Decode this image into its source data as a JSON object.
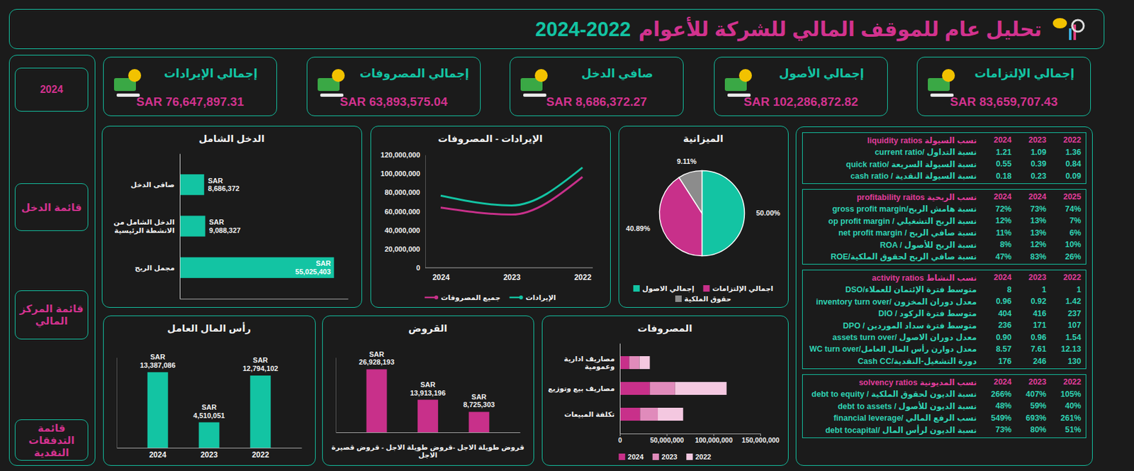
{
  "header": {
    "title": "تحليل عام للموقف المالي للشركة للأعوام",
    "years": "2022-2024"
  },
  "sidebar": [
    "2024",
    "قائمة الدخل",
    "قائمة المركز المالي",
    "قائمة التدفقات النقدية"
  ],
  "kpis": [
    {
      "label": "إجمالي الإيرادات",
      "value": "SAR 76,647,897.31"
    },
    {
      "label": "إجمالي المصروفات",
      "value": "SAR 63,893,575.04"
    },
    {
      "label": "صافي الدخل",
      "value": "SAR 8,686,372.27"
    },
    {
      "label": "إجمالي الأصول",
      "value": "SAR 102,286,872.82"
    },
    {
      "label": "إجمالي الإلتزامات",
      "value": "SAR 83,659,707.43"
    }
  ],
  "chart_data": [
    {
      "type": "bar",
      "title": "الدخل الشامل",
      "orientation": "horizontal",
      "categories": [
        "صافى الدخل",
        "الدخل الشامل من الانشطة الرئيسية",
        "مجمل الربح"
      ],
      "values": [
        8686372,
        9088327,
        55025403
      ],
      "value_labels": [
        "SAR 8,686,372",
        "SAR 9,088,327",
        "SAR 55,025,403"
      ],
      "color": "#13c4a3",
      "xlim": [
        0,
        60000000
      ],
      "data_labels": true,
      "tick_labels": "y"
    },
    {
      "type": "line",
      "title": "الإيرادات - المصروفات",
      "categories": [
        "2024",
        "2023",
        "2022"
      ],
      "series": [
        {
          "name": "الإيرادات",
          "color": "#13c4a3",
          "values": [
            76647897,
            66200000,
            106500000
          ]
        },
        {
          "name": "جميع المصروفات",
          "color": "#c8308a",
          "values": [
            63893575,
            56500000,
            96500000
          ]
        }
      ],
      "ylim": [
        0,
        120000000
      ],
      "yticks": [
        0,
        {
          "value": 20000000,
          "label": "20,000,000"
        },
        {
          "value": 40000000,
          "label": "40,000,000"
        },
        {
          "value": 60000000,
          "label": "60,000,000"
        },
        {
          "value": 80000000,
          "label": "80,000,000"
        },
        {
          "value": 100000000,
          "label": "100,000,000"
        },
        {
          "value": 120000000,
          "label": "120,000,000"
        }
      ],
      "legend": "bottom"
    },
    {
      "type": "pie",
      "title": "الميزانية",
      "categories": [
        "إجمالي الاصول",
        "اجمالي الإلتزامات",
        "حقوق الملكية"
      ],
      "values": [
        50,
        40.89,
        9.11
      ],
      "value_labels": [
        "50.00%",
        "40.89%",
        "9.11%"
      ],
      "colors": [
        "#13c4a3",
        "#c8308a",
        "#8c8c8c"
      ],
      "data_labels": true,
      "legend": "bottom"
    },
    {
      "type": "bar",
      "title": "رأس المال العامل",
      "categories": [
        "2024",
        "2023",
        "2022"
      ],
      "values": [
        13387086,
        4510051,
        12794102
      ],
      "value_labels": [
        "SAR 13,387,086",
        "SAR 4,510,051",
        "SAR 12,794,102"
      ],
      "color": "#13c4a3",
      "ylim": [
        0,
        16000000
      ],
      "data_labels": true,
      "tick_labels": "x"
    },
    {
      "type": "bar",
      "title": "القروض",
      "x_label": "قروض طويلة الاجل -قروض طويلة الاجل - قروض قصيرة الاجل",
      "categories": [
        null,
        null,
        null
      ],
      "values": [
        26928193,
        13913196,
        8725303
      ],
      "value_labels": [
        "SAR 26,928,193",
        "SAR 13,913,196",
        "SAR 8,725,303"
      ],
      "color": "#c8308a",
      "ylim": [
        0,
        32000000
      ],
      "data_labels": true,
      "tick_labels": "x"
    },
    {
      "type": "bar",
      "title": "المصروفات",
      "orientation": "horizontal",
      "stacked": true,
      "categories": [
        "مصاريف ادارية وعمومية",
        "مصاريف بيع وتوزيع",
        "تكلفة المبيعات"
      ],
      "series": [
        {
          "name": "2024",
          "color": "#c8308a",
          "values": [
            10000000,
            32000000,
            21600000
          ]
        },
        {
          "name": "2023",
          "color": "#e08bbb",
          "values": [
            11000000,
            27000000,
            19000000
          ]
        },
        {
          "name": "2022",
          "color": "#f4c8e0",
          "values": [
            11000000,
            55000000,
            27000000
          ]
        }
      ],
      "xlim": [
        0,
        150000000
      ],
      "xticks": [
        0,
        {
          "value": 50000000,
          "label": "50,000,000"
        },
        {
          "value": 100000000,
          "label": "100,000,000"
        },
        {
          "value": 150000000,
          "label": "150,000,000"
        }
      ],
      "legend": "bottom"
    }
  ],
  "ratio_tables": [
    {
      "title": "liquidity ratios نسب السيولة",
      "years": [
        "2024",
        "2023",
        "2022"
      ],
      "rows": [
        {
          "label": "current ratio/ نسبة التداول",
          "values": [
            "1.21",
            "1.09",
            "1.36"
          ]
        },
        {
          "label": "quick ratio/ نسبة السيولة السريعة",
          "values": [
            "0.55",
            "0.39",
            "0.84"
          ]
        },
        {
          "label": "cash ratio / نسبة السيولة النقدية",
          "values": [
            "0.18",
            "0.23",
            "0.09"
          ]
        }
      ]
    },
    {
      "title": "profitability raitos نسب الربحية",
      "years": [
        "2024",
        "2024",
        "2025"
      ],
      "rows": [
        {
          "label": "gross profit margin/نسبة هامش الربح",
          "values": [
            "72%",
            "73%",
            "74%"
          ]
        },
        {
          "label": "op profit margin / نسبة الربح التشغيلي",
          "values": [
            "12%",
            "13%",
            "7%"
          ]
        },
        {
          "label": "net profit margin / نسبة صافي الربح",
          "values": [
            "11%",
            "13%",
            "6%"
          ]
        },
        {
          "label": "ROA / نسبة الربح للأصول",
          "values": [
            "8%",
            "12%",
            "10%"
          ]
        },
        {
          "label": "ROE/نسبة صافي الربح لحقوق الملكية",
          "values": [
            "47%",
            "83%",
            "26%"
          ]
        }
      ]
    },
    {
      "title": "activity ratios نسب النشاط",
      "years": [
        "2024",
        "2023",
        "2022"
      ],
      "rows": [
        {
          "label": "DSO/متوسط فترة الإئتمان للعملاء",
          "values": [
            "8",
            "1",
            "1"
          ]
        },
        {
          "label": "inventory turn over/ معدل دوران المخزون",
          "values": [
            "0.96",
            "0.92",
            "1.42"
          ]
        },
        {
          "label": "DIO / متوسط فترة الركود",
          "values": [
            "404",
            "416",
            "237"
          ]
        },
        {
          "label": "DPO / متوسط فترة سداد الموردين",
          "values": [
            "236",
            "171",
            "107"
          ]
        },
        {
          "label": "assets turn over/ معدل دوران الاصول",
          "values": [
            "0.90",
            "0.96",
            "1.54"
          ]
        },
        {
          "label": "WC turn over/معدل دوارن رأس المال العامل",
          "values": [
            "8.57",
            "7.61",
            "12.13"
          ]
        },
        {
          "label": "Cash CC/دورة التشغيل-النقدية",
          "values": [
            "176",
            "246",
            "130"
          ]
        }
      ]
    },
    {
      "title": "solvency ratios نسب المديونية",
      "years": [
        "2024",
        "2023",
        "2022"
      ],
      "rows": [
        {
          "label": "debt to equity / نسبة الديون لحقوق الملكية",
          "values": [
            "266%",
            "407%",
            "105%"
          ]
        },
        {
          "label": "debt to assets / نسبة الديون للأصول",
          "values": [
            "48%",
            "59%",
            "40%"
          ]
        },
        {
          "label": "financial leverage/ نسب الرفع المالي",
          "values": [
            "549%",
            "693%",
            "261%"
          ]
        },
        {
          "label": "debt tocapital/ نسبة الديون لرأس المال",
          "values": [
            "73%",
            "80%",
            "51%"
          ]
        }
      ]
    }
  ]
}
